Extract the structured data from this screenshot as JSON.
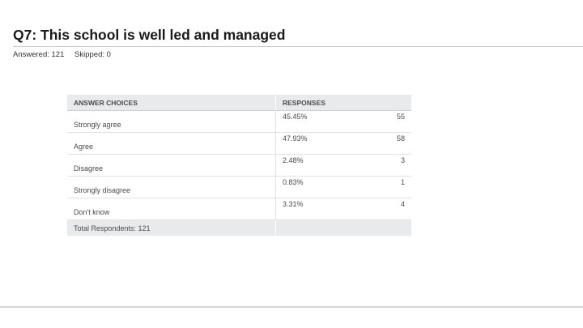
{
  "title": "Q7: This school is well led and managed",
  "stats": {
    "answered": "Answered: 121",
    "skipped": "Skipped: 0"
  },
  "table": {
    "headers": [
      "ANSWER CHOICES",
      "RESPONSES"
    ],
    "rows": [
      {
        "choice": "Strongly agree",
        "percent": "45.45%",
        "count": "55"
      },
      {
        "choice": "Agree",
        "percent": "47.93%",
        "count": "58"
      },
      {
        "choice": "Disagree",
        "percent": "2.48%",
        "count": "3"
      },
      {
        "choice": "Strongly disagree",
        "percent": "0.83%",
        "count": "1"
      },
      {
        "choice": "Don't know",
        "percent": "3.31%",
        "count": "4"
      }
    ],
    "total": "Total Respondents: 121"
  }
}
